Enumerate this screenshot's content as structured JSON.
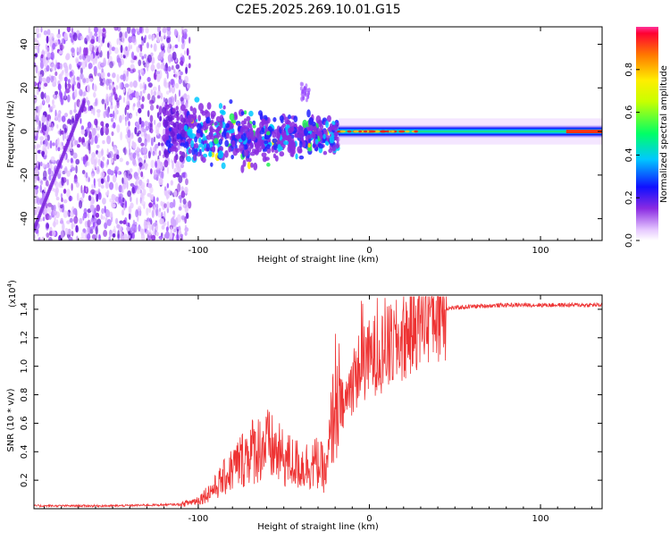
{
  "title": "C2E5.2025.269.10.01.G15",
  "chart_data": [
    {
      "type": "heatmap",
      "xlabel": "Height of straight line (km)",
      "ylabel": "Frequency (Hz)",
      "xlim": [
        -196,
        136
      ],
      "ylim": [
        -50,
        48
      ],
      "xticks": [
        -100,
        0,
        100
      ],
      "yticks": [
        -40,
        -20,
        0,
        20,
        40
      ],
      "colorbar": {
        "label": "Normalized spectral amplitude",
        "range": [
          0,
          1
        ],
        "ticks": [
          "0.0",
          "0.2",
          "0.4",
          "0.6",
          "0.8"
        ]
      },
      "regions": [
        {
          "x_from": -196,
          "x_to": -105,
          "pattern": "broadband sparse speckle",
          "amplitude": 0.1
        },
        {
          "x_from": -120,
          "x_to": -18,
          "pattern": "scattered blobs around 0 Hz",
          "amplitude": 0.35
        },
        {
          "x_from": -40,
          "x_to": -35,
          "pattern": "small cluster near 20 Hz",
          "amplitude": 0.2
        },
        {
          "x_from": -18,
          "x_to": 30,
          "pattern": "narrow band at 0 Hz",
          "amplitude": 0.9
        },
        {
          "x_from": 30,
          "x_to": 136,
          "pattern": "steady narrow band at 0 Hz",
          "amplitude": 0.8
        }
      ]
    },
    {
      "type": "line",
      "xlabel": "Height of straight line (km)",
      "ylabel": "SNR (10 * v/v)",
      "yscale_label": "(x10",
      "yscale_exp": "4",
      "xlim": [
        -196,
        136
      ],
      "ylim": [
        0,
        1.5
      ],
      "xticks": [
        -100,
        0,
        100
      ],
      "yticks": [
        "0.2",
        "0.4",
        "0.6",
        "0.8",
        "1.0",
        "1.2",
        "1.4"
      ],
      "series": [
        {
          "name": "SNR",
          "color": "#ee3333",
          "x": [
            -196,
            -150,
            -110,
            -100,
            -90,
            -80,
            -70,
            -60,
            -50,
            -40,
            -30,
            -25,
            -20,
            -15,
            -10,
            -5,
            0,
            5,
            10,
            15,
            20,
            30,
            40,
            60,
            80,
            100,
            120,
            136
          ],
          "y": [
            0.02,
            0.02,
            0.03,
            0.06,
            0.15,
            0.28,
            0.4,
            0.45,
            0.35,
            0.3,
            0.32,
            0.25,
            0.8,
            0.7,
            0.9,
            1.0,
            1.05,
            1.1,
            1.12,
            1.15,
            1.2,
            1.35,
            1.4,
            1.42,
            1.43,
            1.43,
            1.43,
            1.43
          ]
        }
      ]
    }
  ]
}
